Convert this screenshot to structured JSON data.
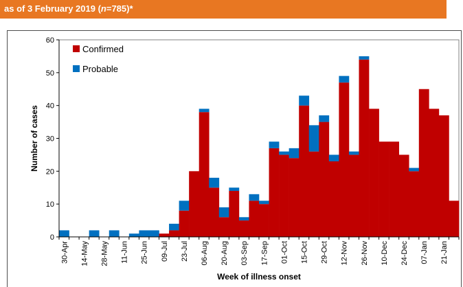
{
  "header": {
    "title_prefix": "as of 3 February 2019 (",
    "title_n": "n",
    "title_suffix": "=785)*"
  },
  "colors": {
    "banner": "#e87722",
    "confirmed": "#c00000",
    "probable": "#0070c0"
  },
  "chart_data": {
    "type": "bar",
    "stacked": true,
    "xlabel": "Week of illness onset",
    "ylabel": "Number of cases",
    "ylim": [
      0,
      60
    ],
    "yticks": [
      0,
      10,
      20,
      30,
      40,
      50,
      60
    ],
    "legend_placement": "top-left",
    "x_tick_labels": [
      "30-Apr",
      "14-May",
      "28-May",
      "11-Jun",
      "25-Jun",
      "09-Jul",
      "23-Jul",
      "06-Aug",
      "20-Aug",
      "03-Sep",
      "17-Sep",
      "01-Oct",
      "15-Oct",
      "29-Oct",
      "12-Nov",
      "26-Nov",
      "10-Dec",
      "24-Dec",
      "07-Jan",
      "21-Jan"
    ],
    "categories": [
      "30-Apr",
      "07-May",
      "14-May",
      "21-May",
      "28-May",
      "04-Jun",
      "11-Jun",
      "18-Jun",
      "25-Jun",
      "02-Jul",
      "09-Jul",
      "16-Jul",
      "23-Jul",
      "30-Jul",
      "06-Aug",
      "13-Aug",
      "20-Aug",
      "27-Aug",
      "03-Sep",
      "10-Sep",
      "17-Sep",
      "24-Sep",
      "01-Oct",
      "08-Oct",
      "15-Oct",
      "22-Oct",
      "29-Oct",
      "05-Nov",
      "12-Nov",
      "19-Nov",
      "26-Nov",
      "03-Dec",
      "10-Dec",
      "17-Dec",
      "24-Dec",
      "31-Dec",
      "07-Jan",
      "14-Jan",
      "21-Jan",
      "28-Jan"
    ],
    "series": [
      {
        "name": "Confirmed",
        "values": [
          0,
          0,
          0,
          0,
          0,
          0,
          0,
          0,
          0,
          0,
          1,
          2,
          8,
          20,
          38,
          15,
          6,
          14,
          5,
          11,
          10,
          27,
          25,
          24,
          40,
          26,
          35,
          23,
          47,
          25,
          54,
          39,
          29,
          29,
          25,
          20,
          45,
          39,
          37,
          11
        ]
      },
      {
        "name": "Probable",
        "values": [
          2,
          0,
          0,
          2,
          0,
          2,
          0,
          1,
          2,
          2,
          0,
          2,
          3,
          0,
          1,
          3,
          3,
          1,
          1,
          2,
          1,
          2,
          1,
          3,
          3,
          8,
          2,
          2,
          2,
          1,
          1,
          0,
          0,
          0,
          0,
          1,
          0,
          0,
          0,
          0
        ]
      }
    ]
  }
}
